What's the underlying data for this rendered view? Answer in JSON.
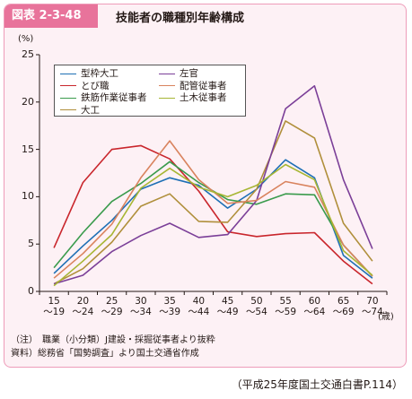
{
  "header": {
    "badge": "図表 2-3-48",
    "title": "技能者の職種別年齢構成"
  },
  "chart_data": {
    "type": "line",
    "title": "技能者の職種別年齢構成",
    "unit_label": "(%)",
    "x_unit_label": "(歳)",
    "categories": [
      {
        "top": "15",
        "bottom": "～19"
      },
      {
        "top": "20",
        "bottom": "～24"
      },
      {
        "top": "25",
        "bottom": "～29"
      },
      {
        "top": "30",
        "bottom": "～34"
      },
      {
        "top": "35",
        "bottom": "～39"
      },
      {
        "top": "40",
        "bottom": "～44"
      },
      {
        "top": "45",
        "bottom": "～49"
      },
      {
        "top": "50",
        "bottom": "～54"
      },
      {
        "top": "55",
        "bottom": "～59"
      },
      {
        "top": "60",
        "bottom": "～64"
      },
      {
        "top": "65",
        "bottom": "～69"
      },
      {
        "top": "70",
        "bottom": "～74"
      }
    ],
    "ylim": [
      0,
      25
    ],
    "yticks": [
      "0",
      "5",
      "10",
      "15",
      "20",
      "25"
    ],
    "legend_position": "top-left",
    "series": [
      {
        "name": "型枠大工",
        "color": "#1e6fb5",
        "values": [
          1.9,
          4.8,
          7.5,
          10.8,
          12.0,
          11.2,
          8.8,
          10.8,
          13.9,
          12.0,
          3.8,
          1.4
        ]
      },
      {
        "name": "とび職",
        "color": "#c9262c",
        "values": [
          4.6,
          11.5,
          15.0,
          15.4,
          14.0,
          10.6,
          6.3,
          5.8,
          6.1,
          6.2,
          3.2,
          0.8
        ]
      },
      {
        "name": "鉄筋作業従事者",
        "color": "#3a9b4c",
        "values": [
          2.5,
          6.2,
          9.5,
          11.4,
          13.7,
          11.5,
          9.7,
          9.2,
          10.3,
          10.2,
          4.9,
          1.6
        ]
      },
      {
        "name": "大工",
        "color": "#b08f3b",
        "values": [
          0.8,
          2.4,
          5.2,
          9.0,
          10.3,
          7.4,
          7.3,
          10.8,
          18.0,
          16.2,
          7.2,
          3.2
        ]
      },
      {
        "name": "左官",
        "color": "#7b3f98",
        "values": [
          0.8,
          1.7,
          4.2,
          5.9,
          7.2,
          5.7,
          6.0,
          9.6,
          19.3,
          21.7,
          11.8,
          4.5
        ]
      },
      {
        "name": "配管従事者",
        "color": "#d9835e",
        "values": [
          1.4,
          4.0,
          7.1,
          12.0,
          15.9,
          11.8,
          9.3,
          9.6,
          11.6,
          11.0,
          4.9,
          1.6
        ]
      },
      {
        "name": "土木従事者",
        "color": "#a7b634",
        "values": [
          0.6,
          3.2,
          6.0,
          10.9,
          13.0,
          11.0,
          10.0,
          11.2,
          13.4,
          11.8,
          4.3,
          1.7
        ]
      }
    ]
  },
  "notes": {
    "line1": "（注）　職業（小分類）J建設・採掘従事者より抜粋",
    "line2": "資料）総務省「国勢調査」より国土交通省作成"
  },
  "source": "（平成25年度国土交通白書P.114）"
}
